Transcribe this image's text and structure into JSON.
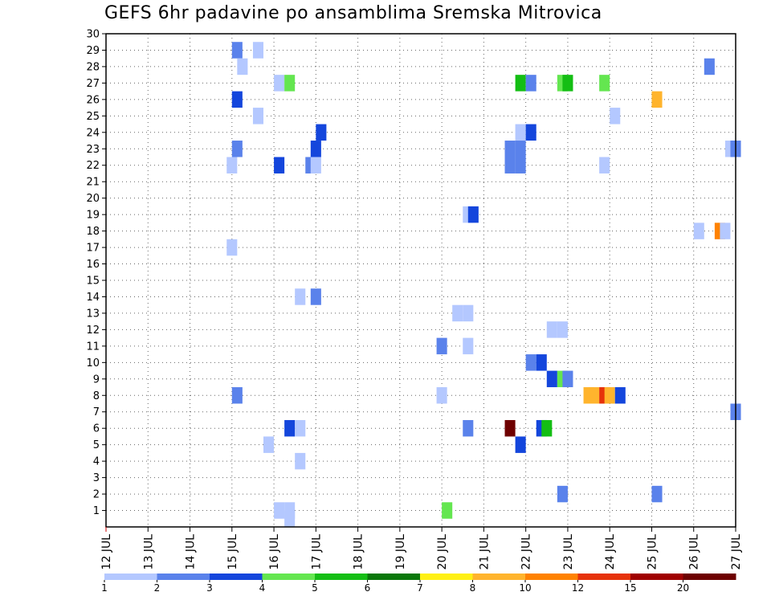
{
  "title": "GEFS 6hr padavine po ansamblima Sremska Mitrovica",
  "chart_data": {
    "type": "heatmap",
    "title": "GEFS 6hr padavine po ansamblima Sremska Mitrovica",
    "xlabel": "",
    "ylabel": "",
    "x_ticks": [
      "12 JUL",
      "13 JUL",
      "14 JUL",
      "15 JUL",
      "16 JUL",
      "17 JUL",
      "18 JUL",
      "19 JUL",
      "20 JUL",
      "21 JUL",
      "22 JUL",
      "23 JUL",
      "24 JUL",
      "25 JUL",
      "26 JUL",
      "27 JUL"
    ],
    "y_ticks": [
      1,
      2,
      3,
      4,
      5,
      6,
      7,
      8,
      9,
      10,
      11,
      12,
      13,
      14,
      15,
      16,
      17,
      18,
      19,
      20,
      21,
      22,
      23,
      24,
      25,
      26,
      27,
      28,
      29,
      30
    ],
    "x_unit": "6-hour step from 12 JUL 00Z",
    "colorbar": {
      "labels": [
        "1",
        "2",
        "3",
        "4",
        "5",
        "6",
        "7",
        "8",
        "10",
        "12",
        "15",
        "20"
      ],
      "colors": [
        "#b4c8ff",
        "#5a82eb",
        "#1446dc",
        "#64e650",
        "#14be14",
        "#0a780a",
        "#fff014",
        "#ffb42d",
        "#ff8200",
        "#e6320a",
        "#a00000",
        "#6e0000"
      ]
    },
    "cells": [
      {
        "t": 12.5,
        "m": 29,
        "c": 1
      },
      {
        "t": 14.5,
        "m": 29,
        "c": 0
      },
      {
        "t": 13,
        "m": 28,
        "c": 0
      },
      {
        "t": 57.5,
        "m": 28,
        "c": 1
      },
      {
        "t": 16.5,
        "m": 27,
        "c": 0
      },
      {
        "t": 17.5,
        "m": 27,
        "c": 3
      },
      {
        "t": 39.5,
        "m": 27,
        "c": 4
      },
      {
        "t": 40.5,
        "m": 27,
        "c": 1
      },
      {
        "t": 43.5,
        "m": 27,
        "c": 3
      },
      {
        "t": 44,
        "m": 27,
        "c": 4
      },
      {
        "t": 47.5,
        "m": 27,
        "c": 3
      },
      {
        "t": 12.5,
        "m": 26,
        "c": 2
      },
      {
        "t": 52.5,
        "m": 26,
        "c": 7
      },
      {
        "t": 14.5,
        "m": 25,
        "c": 0
      },
      {
        "t": 48.5,
        "m": 25,
        "c": 0
      },
      {
        "t": 20.5,
        "m": 24,
        "c": 2
      },
      {
        "t": 39.5,
        "m": 24,
        "c": 0
      },
      {
        "t": 40.5,
        "m": 24,
        "c": 2
      },
      {
        "t": 12.5,
        "m": 23,
        "c": 1
      },
      {
        "t": 20,
        "m": 23,
        "c": 2
      },
      {
        "t": 38.5,
        "m": 23,
        "c": 1
      },
      {
        "t": 39.5,
        "m": 23,
        "c": 1
      },
      {
        "t": 59.5,
        "m": 23,
        "c": 0
      },
      {
        "t": 60,
        "m": 23,
        "c": 1
      },
      {
        "t": 12,
        "m": 22,
        "c": 0
      },
      {
        "t": 16.5,
        "m": 22,
        "c": 2
      },
      {
        "t": 19.5,
        "m": 22,
        "c": 1
      },
      {
        "t": 20,
        "m": 22,
        "c": 0
      },
      {
        "t": 38.5,
        "m": 22,
        "c": 1
      },
      {
        "t": 39.5,
        "m": 22,
        "c": 1
      },
      {
        "t": 47.5,
        "m": 22,
        "c": 0
      },
      {
        "t": 34.5,
        "m": 19,
        "c": 0
      },
      {
        "t": 35,
        "m": 19,
        "c": 2
      },
      {
        "t": 56.5,
        "m": 18,
        "c": 0
      },
      {
        "t": 58.5,
        "m": 18,
        "c": 8
      },
      {
        "t": 59,
        "m": 18,
        "c": 0
      },
      {
        "t": 12,
        "m": 17,
        "c": 0
      },
      {
        "t": 18.5,
        "m": 14,
        "c": 0
      },
      {
        "t": 20,
        "m": 14,
        "c": 1
      },
      {
        "t": 33.5,
        "m": 13,
        "c": 0
      },
      {
        "t": 34.5,
        "m": 13,
        "c": 0
      },
      {
        "t": 42.5,
        "m": 12,
        "c": 0
      },
      {
        "t": 43.5,
        "m": 12,
        "c": 0
      },
      {
        "t": 32,
        "m": 11,
        "c": 1
      },
      {
        "t": 34.5,
        "m": 11,
        "c": 0
      },
      {
        "t": 40.5,
        "m": 10,
        "c": 1
      },
      {
        "t": 41.5,
        "m": 10,
        "c": 2
      },
      {
        "t": 42.5,
        "m": 9,
        "c": 2
      },
      {
        "t": 43.5,
        "m": 9,
        "c": 3
      },
      {
        "t": 44,
        "m": 9,
        "c": 1
      },
      {
        "t": 12.5,
        "m": 8,
        "c": 1
      },
      {
        "t": 32,
        "m": 8,
        "c": 0
      },
      {
        "t": 46,
        "m": 8,
        "c": 7
      },
      {
        "t": 46.5,
        "m": 8,
        "c": 7
      },
      {
        "t": 47.5,
        "m": 8,
        "c": 9
      },
      {
        "t": 48,
        "m": 8,
        "c": 7
      },
      {
        "t": 49,
        "m": 8,
        "c": 2
      },
      {
        "t": 60,
        "m": 7,
        "c": 1
      },
      {
        "t": 17.5,
        "m": 6,
        "c": 2
      },
      {
        "t": 18.5,
        "m": 6,
        "c": 0
      },
      {
        "t": 34.5,
        "m": 6,
        "c": 1
      },
      {
        "t": 38.5,
        "m": 6,
        "c": 11
      },
      {
        "t": 41.5,
        "m": 6,
        "c": 2
      },
      {
        "t": 42,
        "m": 6,
        "c": 4
      },
      {
        "t": 15.5,
        "m": 5,
        "c": 0
      },
      {
        "t": 39.5,
        "m": 5,
        "c": 2
      },
      {
        "t": 18.5,
        "m": 4,
        "c": 0
      },
      {
        "t": 43.5,
        "m": 2,
        "c": 1
      },
      {
        "t": 52.5,
        "m": 2,
        "c": 1
      },
      {
        "t": 16.5,
        "m": 1,
        "c": 0
      },
      {
        "t": 17.5,
        "m": 1,
        "c": 0
      },
      {
        "t": 32.5,
        "m": 1,
        "c": 3
      },
      {
        "t": 17.5,
        "m": 0.5,
        "c": 0
      }
    ],
    "grid": true
  }
}
